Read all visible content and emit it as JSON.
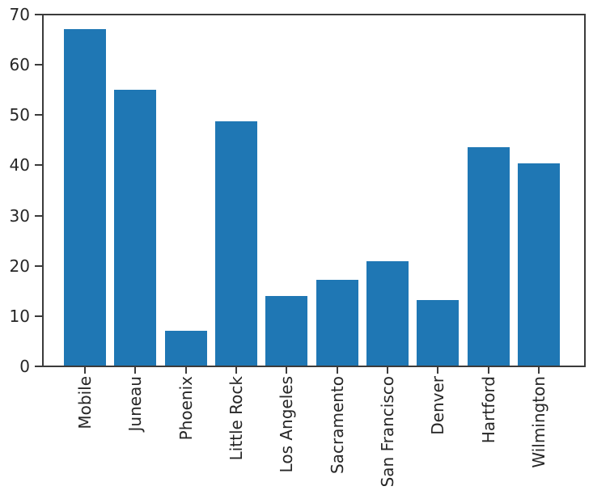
{
  "chart_data": {
    "type": "bar",
    "categories": [
      "Mobile",
      "Juneau",
      "Phoenix",
      "Little Rock",
      "Los Angeles",
      "Sacramento",
      "San Francisco",
      "Denver",
      "Hartford",
      "Wilmington"
    ],
    "values": [
      67.0,
      54.8,
      6.9,
      48.6,
      13.9,
      17.1,
      20.8,
      13.0,
      43.4,
      40.2
    ],
    "title": "",
    "xlabel": "",
    "ylabel": "",
    "ylim": [
      0,
      70
    ],
    "yticks": [
      0,
      10,
      20,
      30,
      40,
      50,
      60,
      70
    ],
    "ytick_labels": [
      "0",
      "10",
      "20",
      "30",
      "40",
      "50",
      "60",
      "70"
    ],
    "xtick_label_rotation_degrees": 90,
    "grid": false,
    "legend": null,
    "bar_color": "#1f77b4",
    "axis_color": "#3b3b3b",
    "tick_text_color": "#262626",
    "background_color": "#ffffff"
  }
}
